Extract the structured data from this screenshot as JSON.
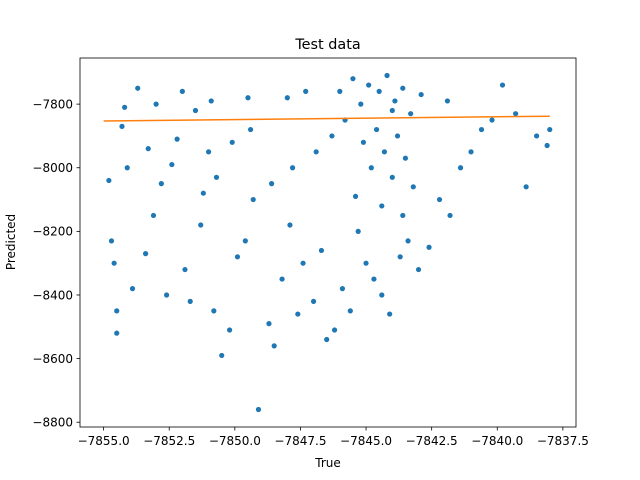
{
  "chart_data": {
    "type": "scatter",
    "title": "Test data",
    "xlabel": "True",
    "ylabel": "Predicted",
    "xlim": [
      -7855.9,
      -7837.0
    ],
    "ylim": [
      -8815,
      -7655
    ],
    "xticks": [
      -7855.0,
      -7852.5,
      -7850.0,
      -7847.5,
      -7845.0,
      -7842.5,
      -7840.0,
      -7837.5
    ],
    "xtick_labels": [
      "−7855.0",
      "−7852.5",
      "−7850.0",
      "−7847.5",
      "−7845.0",
      "−7842.5",
      "−7840.0",
      "−7837.5"
    ],
    "yticks": [
      -7800,
      -8000,
      -8200,
      -8400,
      -8600,
      -8800
    ],
    "ytick_labels": [
      "−7800",
      "−8000",
      "−8200",
      "−8400",
      "−8600",
      "−8800"
    ],
    "grid": false,
    "legend": "none",
    "colors": {
      "points": "#1f77b4",
      "fit_line": "#ff7f0e"
    },
    "fit_line": {
      "x": [
        -7855.0,
        -7838.0
      ],
      "y": [
        -7853,
        -7838
      ]
    },
    "series": [
      {
        "kind": "scatter",
        "points": [
          [
            -7854.8,
            -8040
          ],
          [
            -7854.7,
            -8230
          ],
          [
            -7854.6,
            -8300
          ],
          [
            -7854.5,
            -8450
          ],
          [
            -7854.5,
            -8520
          ],
          [
            -7854.3,
            -7870
          ],
          [
            -7854.1,
            -8000
          ],
          [
            -7853.9,
            -8380
          ],
          [
            -7853.7,
            -7750
          ],
          [
            -7853.4,
            -8270
          ],
          [
            -7853.1,
            -8150
          ],
          [
            -7852.8,
            -8050
          ],
          [
            -7852.6,
            -8400
          ],
          [
            -7852.2,
            -7910
          ],
          [
            -7851.9,
            -8320
          ],
          [
            -7851.7,
            -8420
          ],
          [
            -7851.3,
            -8180
          ],
          [
            -7851.0,
            -7950
          ],
          [
            -7850.8,
            -8450
          ],
          [
            -7850.5,
            -8590
          ],
          [
            -7850.2,
            -8510
          ],
          [
            -7849.9,
            -8280
          ],
          [
            -7849.6,
            -8230
          ],
          [
            -7849.3,
            -8100
          ],
          [
            -7849.1,
            -8760
          ],
          [
            -7848.7,
            -8490
          ],
          [
            -7848.5,
            -8560
          ],
          [
            -7848.2,
            -8350
          ],
          [
            -7847.9,
            -8180
          ],
          [
            -7847.6,
            -8460
          ],
          [
            -7847.4,
            -8300
          ],
          [
            -7847.0,
            -8420
          ],
          [
            -7846.7,
            -8260
          ],
          [
            -7846.5,
            -8540
          ],
          [
            -7846.2,
            -8510
          ],
          [
            -7845.9,
            -8380
          ],
          [
            -7845.6,
            -8450
          ],
          [
            -7845.3,
            -8200
          ],
          [
            -7845.0,
            -8300
          ],
          [
            -7844.7,
            -8350
          ],
          [
            -7844.4,
            -8400
          ],
          [
            -7844.1,
            -8460
          ],
          [
            -7843.7,
            -8280
          ],
          [
            -7843.4,
            -8230
          ],
          [
            -7843.0,
            -8320
          ],
          [
            -7842.6,
            -8250
          ],
          [
            -7842.2,
            -8100
          ],
          [
            -7841.8,
            -8150
          ],
          [
            -7841.4,
            -8000
          ],
          [
            -7841.0,
            -7950
          ],
          [
            -7840.6,
            -7880
          ],
          [
            -7840.2,
            -7850
          ],
          [
            -7839.8,
            -7740
          ],
          [
            -7839.3,
            -7830
          ],
          [
            -7838.9,
            -8060
          ],
          [
            -7838.5,
            -7900
          ],
          [
            -7838.1,
            -7930
          ],
          [
            -7838.0,
            -7880
          ],
          [
            -7845.5,
            -7720
          ],
          [
            -7844.2,
            -7710
          ],
          [
            -7847.3,
            -7760
          ],
          [
            -7846.0,
            -7760
          ],
          [
            -7843.6,
            -7750
          ],
          [
            -7842.9,
            -7770
          ],
          [
            -7841.9,
            -7790
          ],
          [
            -7852.0,
            -7760
          ],
          [
            -7850.9,
            -7790
          ],
          [
            -7849.5,
            -7780
          ],
          [
            -7848.0,
            -7780
          ],
          [
            -7853.0,
            -7800
          ],
          [
            -7854.2,
            -7810
          ],
          [
            -7851.5,
            -7820
          ],
          [
            -7844.9,
            -7740
          ],
          [
            -7844.5,
            -7760
          ],
          [
            -7843.9,
            -7790
          ],
          [
            -7845.2,
            -7800
          ],
          [
            -7844.0,
            -7820
          ],
          [
            -7843.3,
            -7830
          ],
          [
            -7845.8,
            -7850
          ],
          [
            -7844.6,
            -7880
          ],
          [
            -7843.8,
            -7900
          ],
          [
            -7845.1,
            -7920
          ],
          [
            -7844.3,
            -7950
          ],
          [
            -7843.5,
            -7970
          ],
          [
            -7844.8,
            -8000
          ],
          [
            -7844.0,
            -8030
          ],
          [
            -7843.2,
            -8060
          ],
          [
            -7845.4,
            -8090
          ],
          [
            -7844.4,
            -8120
          ],
          [
            -7843.6,
            -8150
          ],
          [
            -7846.3,
            -7900
          ],
          [
            -7846.9,
            -7950
          ],
          [
            -7847.8,
            -8000
          ],
          [
            -7848.6,
            -8050
          ],
          [
            -7849.4,
            -7880
          ],
          [
            -7850.1,
            -7920
          ],
          [
            -7850.7,
            -8030
          ],
          [
            -7851.2,
            -8080
          ],
          [
            -7852.4,
            -7990
          ],
          [
            -7853.3,
            -7940
          ]
        ]
      }
    ]
  }
}
